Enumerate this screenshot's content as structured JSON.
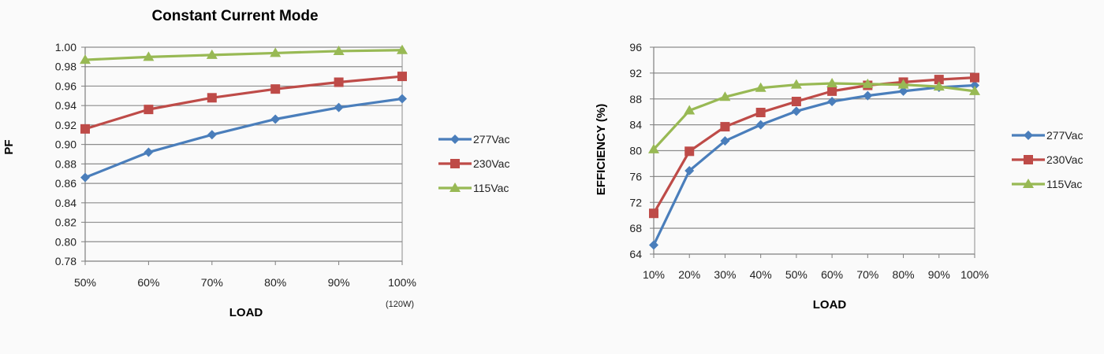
{
  "chart_data": [
    {
      "type": "line",
      "title": "Constant Current Mode",
      "xlabel": "LOAD",
      "ylabel": "PF",
      "x_note": "(120W)",
      "categories": [
        "50%",
        "60%",
        "70%",
        "80%",
        "90%",
        "100%"
      ],
      "ylim": [
        0.78,
        1.0
      ],
      "yticks": [
        "0.78",
        "0.80",
        "0.82",
        "0.84",
        "0.86",
        "0.88",
        "0.90",
        "0.92",
        "0.94",
        "0.96",
        "0.98",
        "1.00"
      ],
      "grid": "horizontal",
      "legend_position": "right",
      "series": [
        {
          "name": "277Vac",
          "color": "#4a7ebb",
          "marker": "diamond",
          "values": [
            0.866,
            0.892,
            0.91,
            0.926,
            0.938,
            0.947
          ]
        },
        {
          "name": "230Vac",
          "color": "#be4b48",
          "marker": "square",
          "values": [
            0.916,
            0.936,
            0.948,
            0.957,
            0.964,
            0.97
          ]
        },
        {
          "name": "115Vac",
          "color": "#98b954",
          "marker": "triangle",
          "values": [
            0.987,
            0.99,
            0.992,
            0.994,
            0.996,
            0.997
          ]
        }
      ]
    },
    {
      "type": "line",
      "title": "",
      "xlabel": "LOAD",
      "ylabel": "EFFICIENCY (%)",
      "categories": [
        "10%",
        "20%",
        "30%",
        "40%",
        "50%",
        "60%",
        "70%",
        "80%",
        "90%",
        "100%"
      ],
      "ylim": [
        64,
        96
      ],
      "yticks": [
        "64",
        "68",
        "72",
        "76",
        "80",
        "84",
        "88",
        "92",
        "96"
      ],
      "grid": "horizontal",
      "legend_position": "right",
      "series": [
        {
          "name": "277Vac",
          "color": "#4a7ebb",
          "marker": "diamond",
          "values": [
            65.4,
            76.9,
            81.5,
            84.0,
            86.1,
            87.6,
            88.5,
            89.2,
            89.8,
            90.1
          ]
        },
        {
          "name": "230Vac",
          "color": "#be4b48",
          "marker": "square",
          "values": [
            70.3,
            79.9,
            83.7,
            85.9,
            87.6,
            89.2,
            90.1,
            90.6,
            91.0,
            91.3
          ]
        },
        {
          "name": "115Vac",
          "color": "#98b954",
          "marker": "triangle",
          "values": [
            80.2,
            86.2,
            88.3,
            89.7,
            90.2,
            90.4,
            90.3,
            90.2,
            89.9,
            89.2
          ]
        }
      ]
    }
  ]
}
